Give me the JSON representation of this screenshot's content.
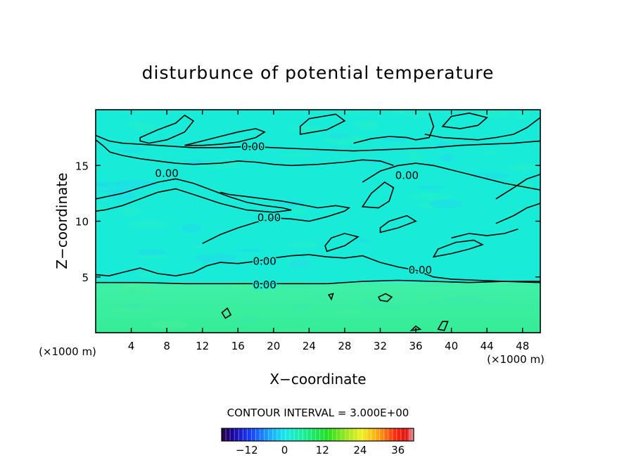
{
  "chart_data": {
    "type": "heatmap",
    "title": "disturbunce of potential temperature",
    "xlabel": "X−coordinate",
    "ylabel": "Z−coordinate",
    "x_unit": "(×1000 m)",
    "x_unit_right": "(×1000 m)",
    "xlim": [
      0,
      50
    ],
    "ylim": [
      0,
      20
    ],
    "x_ticks": [
      4,
      8,
      12,
      16,
      20,
      24,
      28,
      32,
      36,
      40,
      44,
      48
    ],
    "y_ticks": [
      5,
      10,
      15
    ],
    "contour_labels": [
      {
        "text": "0.00",
        "x": 17.7,
        "y": 16.7
      },
      {
        "text": "0.00",
        "x": 8.0,
        "y": 14.3
      },
      {
        "text": "0.00",
        "x": 35.0,
        "y": 14.1
      },
      {
        "text": "0.00",
        "x": 19.5,
        "y": 10.3
      },
      {
        "text": "0.00",
        "x": 19.0,
        "y": 6.4
      },
      {
        "text": "0.00",
        "x": 36.5,
        "y": 5.6
      },
      {
        "text": "0.00",
        "x": 19.0,
        "y": 4.3
      }
    ],
    "contour_lines": [
      {
        "level": 0,
        "points": [
          [
            0,
            5.2
          ],
          [
            1.5,
            5.1
          ],
          [
            3,
            5.4
          ],
          [
            5,
            5.8
          ],
          [
            7,
            5.3
          ],
          [
            9,
            5.1
          ],
          [
            11,
            5.4
          ],
          [
            12.5,
            6.0
          ],
          [
            14,
            6.3
          ],
          [
            16,
            6.2
          ],
          [
            18,
            6.4
          ],
          [
            20,
            6.7
          ],
          [
            22,
            6.9
          ],
          [
            24,
            7.0
          ],
          [
            26,
            6.8
          ],
          [
            28,
            6.7
          ],
          [
            30,
            6.9
          ],
          [
            32,
            6.3
          ],
          [
            34,
            5.9
          ],
          [
            36,
            5.6
          ],
          [
            38,
            5.0
          ],
          [
            40,
            4.8
          ],
          [
            43,
            4.7
          ],
          [
            46,
            4.6
          ],
          [
            50,
            4.5
          ]
        ]
      },
      {
        "level": 0,
        "points": [
          [
            0,
            4.5
          ],
          [
            5,
            4.5
          ],
          [
            10,
            4.4
          ],
          [
            14,
            4.4
          ],
          [
            18,
            4.4
          ],
          [
            22,
            4.4
          ],
          [
            26,
            4.4
          ],
          [
            30,
            4.6
          ],
          [
            34,
            4.7
          ],
          [
            38,
            4.6
          ],
          [
            42,
            4.5
          ],
          [
            46,
            4.6
          ],
          [
            50,
            4.6
          ]
        ]
      },
      {
        "level": 0,
        "points": [
          [
            12,
            8.0
          ],
          [
            14,
            8.8
          ],
          [
            16,
            9.4
          ],
          [
            18,
            9.9
          ],
          [
            20,
            10.3
          ],
          [
            22,
            10.2
          ],
          [
            24,
            10.0
          ],
          [
            26,
            10.4
          ],
          [
            28,
            10.9
          ],
          [
            28.5,
            11.2
          ],
          [
            27,
            11.4
          ],
          [
            25,
            11.2
          ],
          [
            23,
            11.5
          ],
          [
            21,
            11.8
          ],
          [
            19,
            12.0
          ],
          [
            17,
            12.2
          ],
          [
            15,
            12.4
          ],
          [
            14,
            12.6
          ]
        ]
      },
      {
        "level": 0,
        "points": [
          [
            0,
            12.0
          ],
          [
            3,
            12.5
          ],
          [
            5,
            13.0
          ],
          [
            7,
            13.5
          ],
          [
            9,
            13.8
          ],
          [
            11,
            13.4
          ],
          [
            13,
            12.8
          ],
          [
            15,
            12.2
          ],
          [
            17,
            11.7
          ],
          [
            19,
            11.4
          ],
          [
            21,
            11.2
          ],
          [
            22,
            11.0
          ],
          [
            20,
            10.8
          ],
          [
            17,
            11.0
          ],
          [
            14,
            11.6
          ],
          [
            11,
            12.4
          ],
          [
            9,
            12.9
          ],
          [
            7,
            12.6
          ],
          [
            5,
            12.0
          ],
          [
            3,
            11.4
          ],
          [
            1,
            11.0
          ],
          [
            0,
            10.9
          ]
        ]
      },
      {
        "level": 0,
        "points": [
          [
            0,
            17.7
          ],
          [
            1.5,
            17.2
          ],
          [
            3,
            17.0
          ],
          [
            5,
            16.9
          ],
          [
            7,
            16.8
          ],
          [
            9,
            16.7
          ],
          [
            11,
            16.6
          ],
          [
            14,
            16.6
          ],
          [
            17,
            16.7
          ],
          [
            20,
            16.6
          ],
          [
            23,
            16.5
          ],
          [
            26,
            16.4
          ],
          [
            29,
            16.3
          ],
          [
            32,
            16.4
          ],
          [
            35,
            16.5
          ],
          [
            38,
            16.6
          ],
          [
            41,
            16.8
          ],
          [
            44,
            16.9
          ],
          [
            47,
            17.0
          ],
          [
            50,
            17.2
          ]
        ]
      },
      {
        "level": 0,
        "points": [
          [
            0,
            17.3
          ],
          [
            0.8,
            16.8
          ],
          [
            1.6,
            16.2
          ],
          [
            3,
            15.9
          ],
          [
            5,
            15.6
          ],
          [
            7,
            15.4
          ],
          [
            9,
            15.2
          ],
          [
            11,
            15.1
          ],
          [
            14,
            15.2
          ],
          [
            16,
            15.4
          ],
          [
            18,
            15.3
          ],
          [
            20,
            15.1
          ],
          [
            22,
            15.0
          ],
          [
            25,
            15.1
          ],
          [
            28,
            15.3
          ],
          [
            30,
            15.5
          ],
          [
            32,
            15.4
          ],
          [
            33.5,
            15.0
          ]
        ]
      },
      {
        "level": 0,
        "points": [
          [
            30,
            13.5
          ],
          [
            32,
            14.5
          ],
          [
            34,
            15.0
          ],
          [
            36,
            15.2
          ],
          [
            38,
            15.0
          ],
          [
            40,
            14.6
          ],
          [
            42,
            14.2
          ],
          [
            44,
            13.8
          ],
          [
            46,
            13.4
          ],
          [
            48,
            13.1
          ],
          [
            50,
            12.8
          ]
        ]
      },
      {
        "level": 0,
        "points": [
          [
            45,
            12.0
          ],
          [
            47,
            13.0
          ],
          [
            48.5,
            13.8
          ],
          [
            50,
            14.2
          ]
        ]
      },
      {
        "level": 0,
        "points": [
          [
            45,
            9.8
          ],
          [
            47,
            10.5
          ],
          [
            48.5,
            11.2
          ],
          [
            50,
            11.6
          ]
        ]
      },
      {
        "level": 0,
        "points": [
          [
            40,
            8.5
          ],
          [
            42,
            8.9
          ],
          [
            44,
            8.7
          ],
          [
            46,
            8.9
          ],
          [
            47.5,
            9.3
          ]
        ]
      },
      {
        "level": 0,
        "points": [
          [
            37,
            17.8
          ],
          [
            39,
            17.5
          ],
          [
            41,
            17.4
          ],
          [
            43,
            17.3
          ],
          [
            45,
            17.5
          ],
          [
            47,
            17.8
          ],
          [
            48.5,
            18.4
          ],
          [
            50,
            19.3
          ]
        ]
      },
      {
        "level": 0,
        "points": [
          [
            29,
            17.0
          ],
          [
            31,
            17.4
          ],
          [
            33,
            17.6
          ],
          [
            35,
            17.5
          ],
          [
            36,
            17.3
          ],
          [
            37.5,
            17.5
          ],
          [
            38,
            18.5
          ],
          [
            37.5,
            19.7
          ]
        ]
      }
    ],
    "contour_loops": [
      {
        "level": 0,
        "points": [
          [
            5,
            17.5
          ],
          [
            7,
            18.2
          ],
          [
            9,
            18.8
          ],
          [
            10,
            19.5
          ],
          [
            11,
            19.0
          ],
          [
            10,
            18.0
          ],
          [
            8,
            17.3
          ],
          [
            6,
            17.0
          ],
          [
            5,
            17.2
          ]
        ]
      },
      {
        "level": 0,
        "points": [
          [
            10,
            16.8
          ],
          [
            12,
            17.2
          ],
          [
            14,
            17.6
          ],
          [
            16,
            18.0
          ],
          [
            18,
            18.3
          ],
          [
            19,
            18.0
          ],
          [
            18,
            17.5
          ],
          [
            16,
            17.1
          ],
          [
            14,
            16.9
          ],
          [
            12,
            16.8
          ]
        ]
      },
      {
        "level": 0,
        "points": [
          [
            23,
            17.8
          ],
          [
            26,
            18.2
          ],
          [
            28,
            19.0
          ],
          [
            27,
            19.6
          ],
          [
            24,
            19.2
          ],
          [
            23,
            18.5
          ]
        ]
      },
      {
        "level": 0,
        "points": [
          [
            39,
            18.5
          ],
          [
            41,
            18.3
          ],
          [
            43,
            18.6
          ],
          [
            44,
            19.3
          ],
          [
            42,
            19.7
          ],
          [
            40,
            19.4
          ]
        ]
      },
      {
        "level": 0,
        "points": [
          [
            30,
            11.3
          ],
          [
            31,
            12.5
          ],
          [
            32.5,
            13.5
          ],
          [
            33.5,
            13.0
          ],
          [
            33,
            11.8
          ],
          [
            31.8,
            11.2
          ]
        ]
      },
      {
        "level": 0,
        "points": [
          [
            32,
            9.0
          ],
          [
            34,
            9.4
          ],
          [
            36,
            10.0
          ],
          [
            35,
            10.5
          ],
          [
            33,
            10.0
          ],
          [
            32,
            9.4
          ]
        ]
      },
      {
        "level": 0,
        "points": [
          [
            26,
            7.3
          ],
          [
            28,
            7.8
          ],
          [
            29.5,
            8.6
          ],
          [
            28,
            8.9
          ],
          [
            26.5,
            8.5
          ],
          [
            25.8,
            7.8
          ]
        ]
      },
      {
        "level": 0,
        "points": [
          [
            38,
            6.8
          ],
          [
            40,
            7.1
          ],
          [
            42,
            7.5
          ],
          [
            43.5,
            7.9
          ],
          [
            42.5,
            8.3
          ],
          [
            40.5,
            8.1
          ],
          [
            38.5,
            7.5
          ]
        ]
      },
      {
        "level": 0,
        "points": [
          [
            31.8,
            3.2
          ],
          [
            32.6,
            3.5
          ],
          [
            33.3,
            3.2
          ],
          [
            32.8,
            2.8
          ],
          [
            32.0,
            2.9
          ]
        ]
      },
      {
        "level": 0,
        "points": [
          [
            14.2,
            1.8
          ],
          [
            14.8,
            2.2
          ],
          [
            15.2,
            1.6
          ],
          [
            14.6,
            1.3
          ]
        ]
      },
      {
        "level": 0,
        "points": [
          [
            26.2,
            3.4
          ],
          [
            26.7,
            3.5
          ],
          [
            26.5,
            3.0
          ]
        ]
      },
      {
        "level": 0,
        "points": [
          [
            38.5,
            0.3
          ],
          [
            39.0,
            1.0
          ],
          [
            39.6,
            1.0
          ],
          [
            39.2,
            0.2
          ]
        ]
      },
      {
        "level": 0,
        "points": [
          [
            35.5,
            0.2
          ],
          [
            36.0,
            0.6
          ],
          [
            36.5,
            0.3
          ]
        ]
      }
    ],
    "field_bands": [
      {
        "z_range": [
          0,
          4.5
        ],
        "value": 5
      },
      {
        "z_range": [
          4.5,
          20
        ],
        "value": 0
      }
    ],
    "contour_interval_label": "CONTOUR INTERVAL = 3.000E+00",
    "colorbar": {
      "range": [
        -20,
        41
      ],
      "tick_values": [
        -12,
        0,
        12,
        24,
        36
      ],
      "tick_labels": [
        "−12",
        "0",
        "12",
        "24",
        "36"
      ]
    },
    "colors": {
      "upper_field": "#18ecd8",
      "lower_field": "#3ef0a0",
      "contour": "#000000"
    }
  }
}
